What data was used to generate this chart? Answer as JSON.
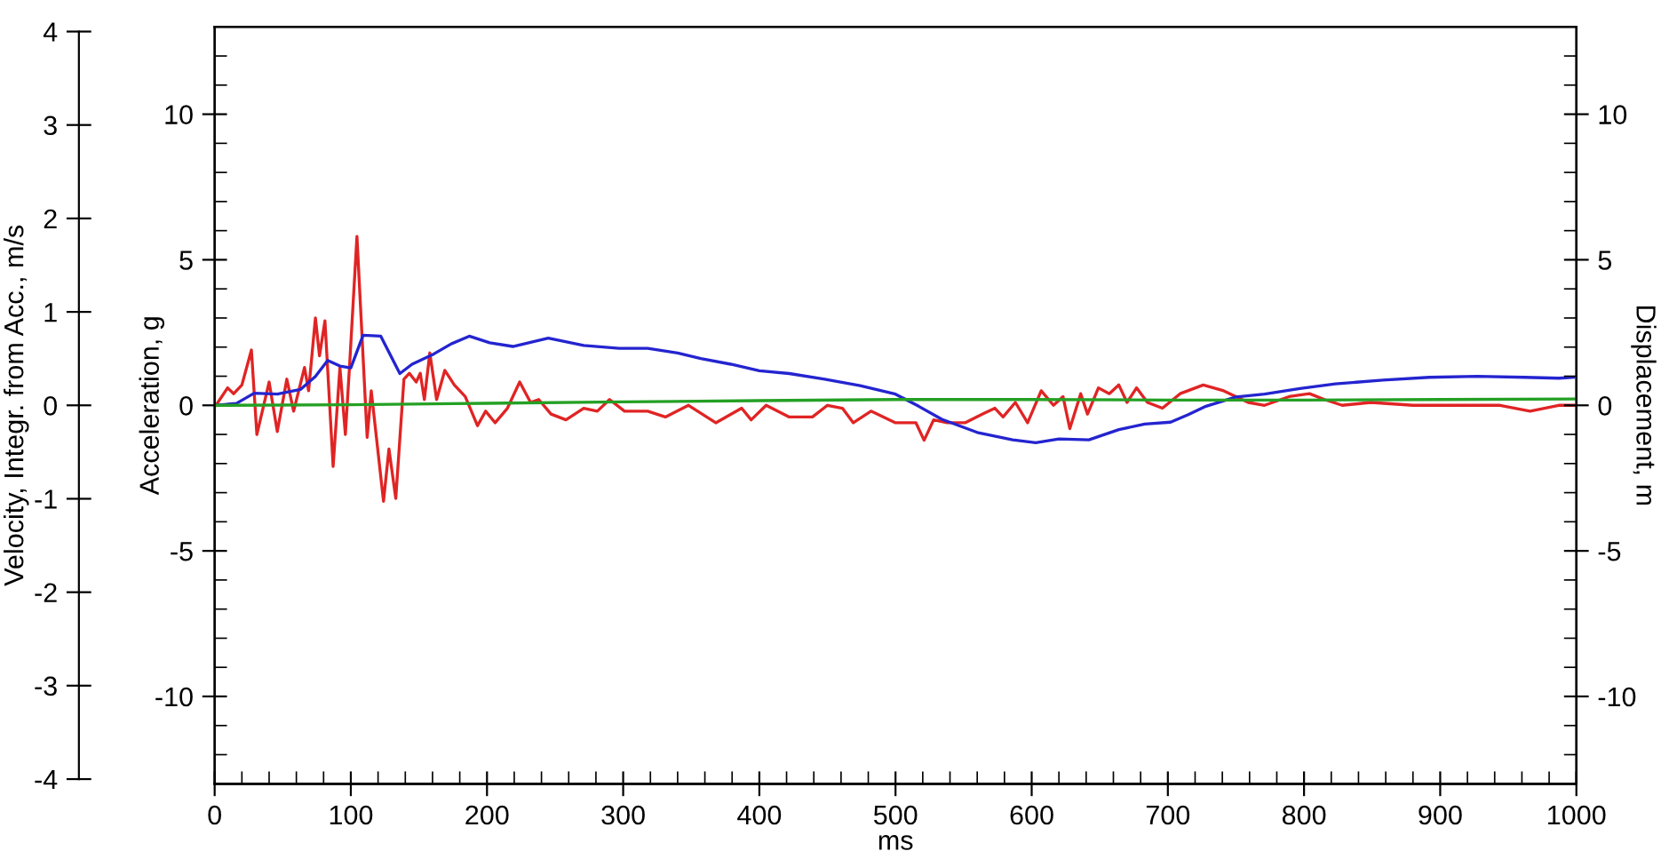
{
  "chart_data": {
    "type": "line",
    "xlabel": "ms",
    "ylabel": "Acceleration, g",
    "y2label": "Displacement, m",
    "y3label": "Velocity, Integr. from Acc., m/s",
    "xlim": [
      0,
      1000
    ],
    "ylim": [
      -13,
      13
    ],
    "y2lim": [
      -13,
      13
    ],
    "y3lim": [
      -4.05,
      4.05
    ],
    "xticks": [
      0,
      {
        "value": 20,
        "label": null
      },
      {
        "value": 40,
        "label": null
      },
      {
        "value": 60,
        "label": null
      },
      {
        "value": 80,
        "label": null
      },
      100,
      {
        "value": 120,
        "label": null
      },
      {
        "value": 140,
        "label": null
      },
      {
        "value": 160,
        "label": null
      },
      {
        "value": 180,
        "label": null
      },
      200,
      {
        "value": 220,
        "label": null
      },
      {
        "value": 240,
        "label": null
      },
      {
        "value": 260,
        "label": null
      },
      {
        "value": 280,
        "label": null
      },
      300,
      {
        "value": 320,
        "label": null
      },
      {
        "value": 340,
        "label": null
      },
      {
        "value": 360,
        "label": null
      },
      {
        "value": 380,
        "label": null
      },
      400,
      {
        "value": 420,
        "label": null
      },
      {
        "value": 440,
        "label": null
      },
      {
        "value": 460,
        "label": null
      },
      {
        "value": 480,
        "label": null
      },
      500,
      {
        "value": 520,
        "label": null
      },
      {
        "value": 540,
        "label": null
      },
      {
        "value": 560,
        "label": null
      },
      {
        "value": 580,
        "label": null
      },
      600,
      {
        "value": 620,
        "label": null
      },
      {
        "value": 640,
        "label": null
      },
      {
        "value": 660,
        "label": null
      },
      {
        "value": 680,
        "label": null
      },
      700,
      {
        "value": 720,
        "label": null
      },
      {
        "value": 740,
        "label": null
      },
      {
        "value": 760,
        "label": null
      },
      {
        "value": 780,
        "label": null
      },
      800,
      {
        "value": 820,
        "label": null
      },
      {
        "value": 840,
        "label": null
      },
      {
        "value": 860,
        "label": null
      },
      {
        "value": 880,
        "label": null
      },
      900,
      {
        "value": 920,
        "label": null
      },
      {
        "value": 940,
        "label": null
      },
      {
        "value": 960,
        "label": null
      },
      {
        "value": 980,
        "label": null
      },
      1000
    ],
    "yticks": [
      {
        "value": -12,
        "label": null
      },
      {
        "value": -11,
        "label": null
      },
      -10,
      {
        "value": -9,
        "label": null
      },
      {
        "value": -8,
        "label": null
      },
      {
        "value": -7,
        "label": null
      },
      {
        "value": -6,
        "label": null
      },
      -5,
      {
        "value": -4,
        "label": null
      },
      {
        "value": -3,
        "label": null
      },
      {
        "value": -2,
        "label": null
      },
      {
        "value": -1,
        "label": null
      },
      0,
      {
        "value": 1,
        "label": null
      },
      {
        "value": 2,
        "label": null
      },
      {
        "value": 3,
        "label": null
      },
      {
        "value": 4,
        "label": null
      },
      5,
      {
        "value": 6,
        "label": null
      },
      {
        "value": 7,
        "label": null
      },
      {
        "value": 8,
        "label": null
      },
      {
        "value": 9,
        "label": null
      },
      10,
      {
        "value": 11,
        "label": null
      },
      {
        "value": 12,
        "label": null
      }
    ],
    "y3ticks": [
      -4,
      -3,
      -2,
      -1,
      0,
      1,
      2,
      3,
      4
    ],
    "y2ticks": [
      {
        "value": -12,
        "label": null
      },
      {
        "value": -11,
        "label": null
      },
      -10,
      {
        "value": -9,
        "label": null
      },
      {
        "value": -8,
        "label": null
      },
      {
        "value": -7,
        "label": null
      },
      {
        "value": -6,
        "label": null
      },
      -5,
      {
        "value": -4,
        "label": null
      },
      {
        "value": -3,
        "label": null
      },
      {
        "value": -2,
        "label": null
      },
      {
        "value": -1,
        "label": null
      },
      0,
      {
        "value": 1,
        "label": null
      },
      {
        "value": 2,
        "label": null
      },
      {
        "value": 3,
        "label": null
      },
      {
        "value": 4,
        "label": null
      },
      5,
      {
        "value": 6,
        "label": null
      },
      {
        "value": 7,
        "label": null
      },
      {
        "value": 8,
        "label": null
      },
      {
        "value": 9,
        "label": null
      },
      10,
      {
        "value": 11,
        "label": null
      },
      {
        "value": 12,
        "label": null
      }
    ],
    "marker": "none",
    "line_style": "solid",
    "series": [
      {
        "color": "#e02424",
        "x": [
          1,
          9.5,
          14,
          20,
          27,
          31,
          40,
          46,
          53,
          58,
          66,
          69,
          74,
          77,
          81,
          87,
          92,
          96,
          99,
          104.5,
          112,
          115,
          124,
          128,
          133,
          139,
          143,
          148,
          151,
          154,
          158,
          163,
          169,
          176,
          184,
          193,
          199,
          206,
          215,
          224,
          232,
          238,
          247,
          258,
          271,
          281,
          290,
          301,
          318,
          331,
          348,
          368,
          387,
          394,
          405,
          422,
          439,
          450,
          461,
          469,
          482,
          500,
          515,
          521,
          528,
          538,
          551,
          564,
          573,
          579,
          588,
          597,
          607,
          616,
          623,
          628,
          636,
          641,
          649,
          657,
          664,
          670,
          677,
          685,
          696,
          709,
          726,
          741,
          759,
          771,
          789,
          804,
          815,
          828,
          849,
          880,
          910,
          944,
          966,
          987,
          998
        ],
        "values": [
          0,
          0.6,
          0.4,
          0.7,
          1.9,
          -1.0,
          0.8,
          -0.9,
          0.9,
          -0.2,
          1.3,
          0.5,
          3.0,
          1.7,
          2.9,
          -2.1,
          1.3,
          -1.0,
          1.3,
          5.8,
          -1.1,
          0.5,
          -3.3,
          -1.5,
          -3.2,
          0.9,
          1.1,
          0.8,
          1.1,
          0.2,
          1.8,
          0.2,
          1.2,
          0.7,
          0.3,
          -0.7,
          -0.2,
          -0.6,
          -0.1,
          0.8,
          0.1,
          0.2,
          -0.3,
          -0.5,
          -0.1,
          -0.2,
          0.2,
          -0.2,
          -0.2,
          -0.4,
          0,
          -0.6,
          -0.1,
          -0.5,
          0,
          -0.4,
          -0.4,
          0,
          -0.1,
          -0.6,
          -0.2,
          -0.6,
          -0.6,
          -1.2,
          -0.5,
          -0.6,
          -0.6,
          -0.3,
          -0.1,
          -0.4,
          0.1,
          -0.6,
          0.5,
          0,
          0.3,
          -0.8,
          0.4,
          -0.3,
          0.6,
          0.4,
          0.7,
          0.1,
          0.6,
          0.1,
          -0.1,
          0.4,
          0.7,
          0.5,
          0.1,
          0,
          0.3,
          0.4,
          0.2,
          0,
          0.1,
          0,
          0,
          0,
          -0.2,
          0,
          0
        ]
      },
      {
        "color": "#2424d0",
        "axis": "y3",
        "x": [
          1,
          16,
          29,
          46,
          63,
          74,
          83,
          92,
          100,
          109,
          122,
          136,
          145,
          161,
          174,
          187,
          202,
          219,
          245,
          271,
          297,
          318,
          340,
          357,
          379,
          400,
          422,
          448,
          474,
          500,
          517,
          534,
          560,
          586,
          603,
          620,
          642,
          664,
          683,
          702,
          715,
          728,
          750,
          771,
          797,
          823,
          858,
          892,
          927,
          962,
          987,
          998
        ],
        "values": [
          0,
          0.02,
          0.13,
          0.12,
          0.17,
          0.31,
          0.48,
          0.42,
          0.4,
          0.75,
          0.74,
          0.34,
          0.44,
          0.55,
          0.66,
          0.74,
          0.67,
          0.63,
          0.72,
          0.64,
          0.61,
          0.61,
          0.56,
          0.5,
          0.44,
          0.37,
          0.34,
          0.28,
          0.21,
          0.12,
          -0.01,
          -0.15,
          -0.29,
          -0.37,
          -0.4,
          -0.36,
          -0.37,
          -0.26,
          -0.2,
          -0.18,
          -0.1,
          -0.01,
          0.09,
          0.12,
          0.18,
          0.23,
          0.27,
          0.3,
          0.31,
          0.3,
          0.29,
          0.3
        ]
      },
      {
        "color": "#24a024",
        "axis": "y2",
        "x": [
          0,
          100,
          200,
          300,
          400,
          500,
          600,
          700,
          800,
          900,
          1000
        ],
        "values": [
          0,
          0.02,
          0.07,
          0.12,
          0.16,
          0.2,
          0.2,
          0.18,
          0.18,
          0.2,
          0.22
        ]
      }
    ]
  }
}
